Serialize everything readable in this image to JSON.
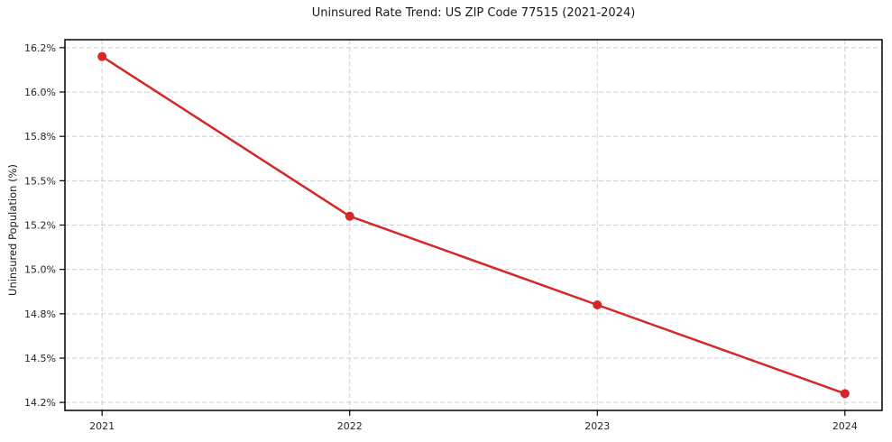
{
  "chart_data": {
    "type": "line",
    "title": "Uninsured Rate Trend: US ZIP Code 77515 (2021-2024)",
    "xlabel": "",
    "ylabel": "Uninsured Population (%)",
    "x": [
      2021,
      2022,
      2023,
      2024
    ],
    "x_tick_labels": [
      "2021",
      "2022",
      "2023",
      "2024"
    ],
    "series": [
      {
        "name": "Uninsured rate",
        "color": "#d62728",
        "values": [
          16.2,
          15.3,
          14.8,
          14.3
        ]
      }
    ],
    "y_ticks": [
      {
        "value": 16.25,
        "label": "16.2%"
      },
      {
        "value": 16.0,
        "label": "16.0%"
      },
      {
        "value": 15.75,
        "label": "15.8%"
      },
      {
        "value": 15.5,
        "label": "15.5%"
      },
      {
        "value": 15.25,
        "label": "15.2%"
      },
      {
        "value": 15.0,
        "label": "15.0%"
      },
      {
        "value": 14.75,
        "label": "14.8%"
      },
      {
        "value": 14.5,
        "label": "14.5%"
      },
      {
        "value": 14.25,
        "label": "14.2%"
      }
    ],
    "xlim": [
      2020.85,
      2024.15
    ],
    "ylim": [
      14.205,
      16.295
    ],
    "grid": true,
    "grid_style": "dashed",
    "legend": false,
    "marker": "circle",
    "colors": {
      "line": "#d62728",
      "grid": "#cccccc",
      "spine": "#000000",
      "tick_text": "#262626",
      "background": "#ffffff"
    }
  }
}
